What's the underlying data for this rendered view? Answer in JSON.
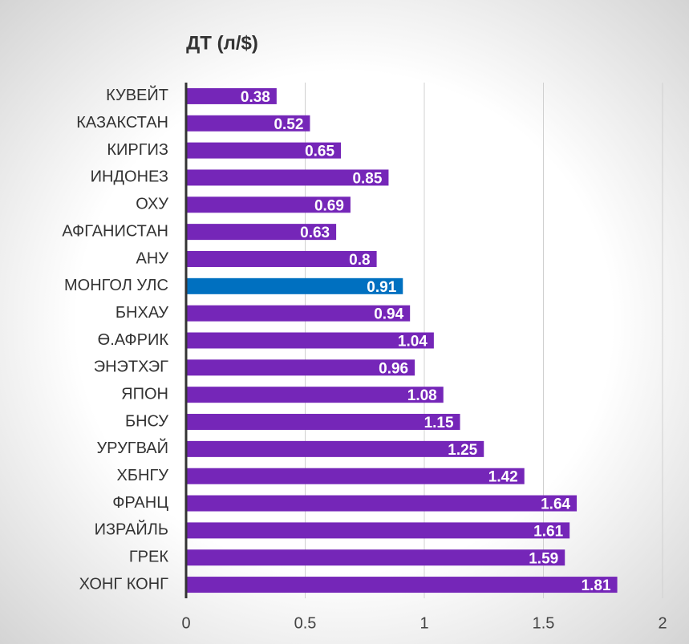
{
  "chart_data": {
    "type": "bar",
    "orientation": "horizontal",
    "title": "ДТ (л/$)",
    "categories": [
      "КУВЕЙТ",
      "КАЗАКСТАН",
      "КИРГИЗ",
      "ИНДОНЕЗ",
      "ОХУ",
      "АФГАНИСТАН",
      "АНУ",
      "МОНГОЛ УЛС",
      "БНХАУ",
      "Ө.АФРИК",
      "ЭНЭТХЭГ",
      "ЯПОН",
      "БНСУ",
      "УРУГВАЙ",
      "ХБНГУ",
      "ФРАНЦ",
      "ИЗРАЙЛЬ",
      "ГРЕК",
      "ХОНГ КОНГ"
    ],
    "values": [
      0.38,
      0.52,
      0.65,
      0.85,
      0.69,
      0.63,
      0.8,
      0.91,
      0.94,
      1.04,
      0.96,
      1.08,
      1.15,
      1.25,
      1.42,
      1.64,
      1.61,
      1.59,
      1.81
    ],
    "colors": [
      "#7526b8",
      "#7526b8",
      "#7526b8",
      "#7526b8",
      "#7526b8",
      "#7526b8",
      "#7526b8",
      "#0070c0",
      "#7526b8",
      "#7526b8",
      "#7526b8",
      "#7526b8",
      "#7526b8",
      "#7526b8",
      "#7526b8",
      "#7526b8",
      "#7526b8",
      "#7526b8",
      "#7526b8"
    ],
    "xlim": [
      0,
      2
    ],
    "xticks": [
      0,
      0.5,
      1,
      1.5,
      2
    ],
    "grid": true
  }
}
